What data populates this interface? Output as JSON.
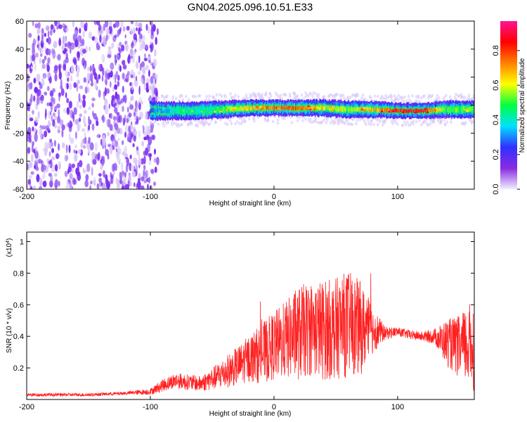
{
  "chart_data": [
    {
      "type": "heatmap",
      "title": "GN04.2025.096.10.51.E33",
      "xlabel": "Height of straight line (km)",
      "ylabel": "Frequency (Hz)",
      "xlim": [
        -200,
        162
      ],
      "ylim": [
        -60,
        60
      ],
      "xticks": [
        -200,
        -100,
        0,
        100
      ],
      "yticks": [
        60,
        40,
        20,
        0,
        -20,
        -40,
        -60
      ],
      "colorbar": {
        "label": "Normalized spectral amplitude",
        "range": [
          0.0,
          0.97
        ],
        "ticks": [
          0.0,
          0.2,
          0.4,
          0.6,
          0.8
        ],
        "colormap": [
          "#f0f0ff",
          "#8a2be2",
          "#3030ff",
          "#00e0ff",
          "#00ff40",
          "#ffff00",
          "#ff8000",
          "#ff0000",
          "#ff1493"
        ]
      },
      "noise_region": {
        "x_range": [
          -200,
          -100
        ],
        "freq_range": [
          -60,
          60
        ],
        "amplitude": 0.05
      },
      "ridge": [
        {
          "x": -100,
          "freq": -4,
          "amplitude": 0.2
        },
        {
          "x": -80,
          "freq": -4,
          "amplitude": 0.35
        },
        {
          "x": -60,
          "freq": -4,
          "amplitude": 0.35
        },
        {
          "x": -40,
          "freq": -3,
          "amplitude": 0.45
        },
        {
          "x": -20,
          "freq": -2,
          "amplitude": 0.6
        },
        {
          "x": 0,
          "freq": -2,
          "amplitude": 0.7
        },
        {
          "x": 20,
          "freq": -2,
          "amplitude": 0.7
        },
        {
          "x": 40,
          "freq": -2,
          "amplitude": 0.55
        },
        {
          "x": 60,
          "freq": -3,
          "amplitude": 0.5
        },
        {
          "x": 80,
          "freq": -3,
          "amplitude": 0.6
        },
        {
          "x": 100,
          "freq": -4,
          "amplitude": 0.75
        },
        {
          "x": 120,
          "freq": -4,
          "amplitude": 0.8
        },
        {
          "x": 140,
          "freq": -3,
          "amplitude": 0.45
        },
        {
          "x": 162,
          "freq": -3,
          "amplitude": 0.45
        }
      ]
    },
    {
      "type": "line",
      "xlabel": "Height of straight line (km)",
      "ylabel": "SNR (10 * v/v)",
      "y_multiplier": "(x10",
      "y_multiplier_exp": "4",
      "y_multiplier_close": ")",
      "xlim": [
        -200,
        162
      ],
      "ylim": [
        0,
        1.06
      ],
      "xticks": [
        -200,
        -100,
        0,
        100
      ],
      "yticks": [
        0.2,
        0.4,
        0.6,
        0.8,
        1.0
      ],
      "color": "#ff2020",
      "series": [
        {
          "name": "SNR",
          "x": [
            -200,
            -150,
            -120,
            -100,
            -90,
            -80,
            -70,
            -60,
            -50,
            -40,
            -30,
            -20,
            -10,
            0,
            10,
            20,
            30,
            40,
            50,
            60,
            70,
            80,
            90,
            100,
            110,
            120,
            130,
            140,
            150,
            162
          ],
          "mean": [
            0.03,
            0.03,
            0.04,
            0.05,
            0.09,
            0.12,
            0.11,
            0.1,
            0.13,
            0.17,
            0.21,
            0.26,
            0.29,
            0.34,
            0.38,
            0.42,
            0.45,
            0.44,
            0.45,
            0.48,
            0.45,
            0.44,
            0.42,
            0.43,
            0.41,
            0.4,
            0.4,
            0.36,
            0.33,
            0.35
          ],
          "amp": [
            0.01,
            0.01,
            0.01,
            0.02,
            0.04,
            0.05,
            0.05,
            0.05,
            0.07,
            0.1,
            0.12,
            0.15,
            0.19,
            0.22,
            0.25,
            0.3,
            0.3,
            0.32,
            0.32,
            0.34,
            0.3,
            0.15,
            0.04,
            0.03,
            0.03,
            0.03,
            0.05,
            0.15,
            0.2,
            0.3
          ]
        }
      ]
    }
  ]
}
